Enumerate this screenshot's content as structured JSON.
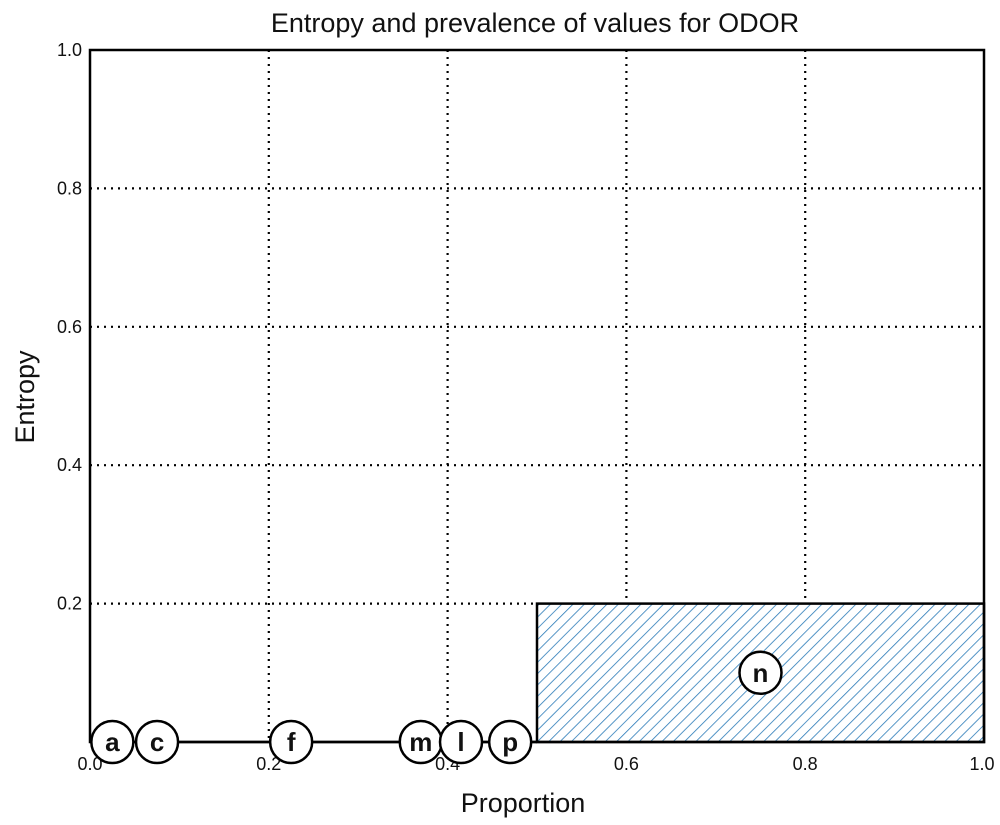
{
  "chart_data": {
    "type": "bar",
    "title": "Entropy and prevalence of values for ODOR",
    "xlabel": "Proportion",
    "ylabel": "Entropy",
    "xlim": [
      0.0,
      1.0
    ],
    "ylim": [
      0.0,
      1.0
    ],
    "x_ticks": [
      "0.0",
      "0.2",
      "0.4",
      "0.6",
      "0.8",
      "1.0"
    ],
    "y_ticks": [
      "0.2",
      "0.4",
      "0.6",
      "0.8",
      "1.0"
    ],
    "grid": true,
    "grid_style": "dotted",
    "bars": [
      {
        "label": "a",
        "x_start": 0.0,
        "x_end": 0.05,
        "entropy": 0.0
      },
      {
        "label": "c",
        "x_start": 0.05,
        "x_end": 0.1,
        "entropy": 0.0
      },
      {
        "label": "f",
        "x_start": 0.1,
        "x_end": 0.35,
        "entropy": 0.0
      },
      {
        "label": "m",
        "x_start": 0.35,
        "x_end": 0.39,
        "entropy": 0.0
      },
      {
        "label": "l",
        "x_start": 0.39,
        "x_end": 0.44,
        "entropy": 0.0
      },
      {
        "label": "p",
        "x_start": 0.44,
        "x_end": 0.5,
        "entropy": 0.0
      },
      {
        "label": "n",
        "x_start": 0.5,
        "x_end": 1.0,
        "entropy": 0.2
      }
    ],
    "fill_color": "#2a7ab8",
    "fill_pattern": "diagonal-hatch",
    "edge_color": "#000000"
  }
}
